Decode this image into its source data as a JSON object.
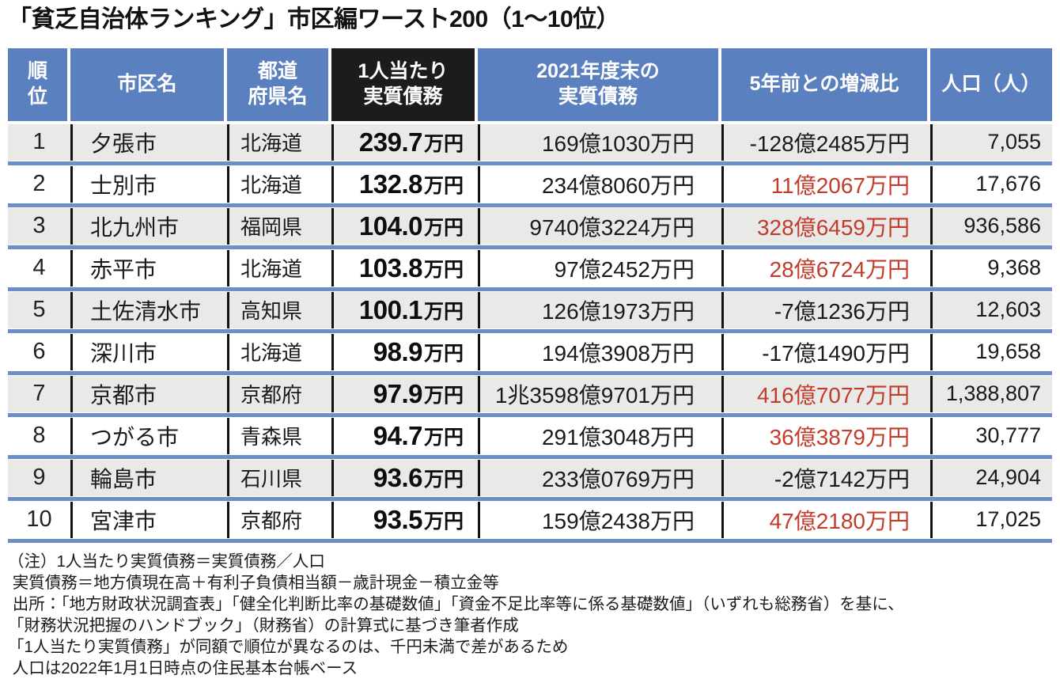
{
  "title": "「貧乏自治体ランキング」市区編ワースト200（1～10位）",
  "colors": {
    "header_blue": "#5b80bf",
    "header_black": "#1c1c1c",
    "row_gray": "#e9e9e8",
    "separator_blue": "#6c8fc7",
    "increase_red": "#c23b2b"
  },
  "chart_data": {
    "type": "table",
    "title": "「貧乏自治体ランキング」市区編ワースト200（1～10位）",
    "columns": [
      {
        "id": "rank",
        "label": "順\n位",
        "header_style": "blue"
      },
      {
        "id": "city",
        "label": "市区名",
        "header_style": "blue"
      },
      {
        "id": "pref",
        "label": "都道\n府県名",
        "header_style": "blue"
      },
      {
        "id": "per_capita",
        "label": "1人当たり\n実質債務",
        "header_style": "black"
      },
      {
        "id": "debt2021",
        "label": "2021年度末の\n実質債務",
        "header_style": "blue"
      },
      {
        "id": "change",
        "label": "5年前との増減比",
        "header_style": "blue"
      },
      {
        "id": "population",
        "label": "人口（人）",
        "header_style": "blue"
      }
    ],
    "rows": [
      {
        "rank": "1",
        "city": "夕張市",
        "pref": "北海道",
        "per_capita_value": "239.7",
        "per_capita_unit": "万円",
        "debt2021": "169億1030万円",
        "change": "-128億2485万円",
        "change_red": false,
        "population": "7,055"
      },
      {
        "rank": "2",
        "city": "士別市",
        "pref": "北海道",
        "per_capita_value": "132.8",
        "per_capita_unit": "万円",
        "debt2021": "234億8060万円",
        "change": "11億2067万円",
        "change_red": true,
        "population": "17,676"
      },
      {
        "rank": "3",
        "city": "北九州市",
        "pref": "福岡県",
        "per_capita_value": "104.0",
        "per_capita_unit": "万円",
        "debt2021": "9740億3224万円",
        "change": "328億6459万円",
        "change_red": true,
        "population": "936,586"
      },
      {
        "rank": "4",
        "city": "赤平市",
        "pref": "北海道",
        "per_capita_value": "103.8",
        "per_capita_unit": "万円",
        "debt2021": "97億2452万円",
        "change": "28億6724万円",
        "change_red": true,
        "population": "9,368"
      },
      {
        "rank": "5",
        "city": "土佐清水市",
        "pref": "高知県",
        "per_capita_value": "100.1",
        "per_capita_unit": "万円",
        "debt2021": "126億1973万円",
        "change": "-7億1236万円",
        "change_red": false,
        "population": "12,603"
      },
      {
        "rank": "6",
        "city": "深川市",
        "pref": "北海道",
        "per_capita_value": "98.9",
        "per_capita_unit": "万円",
        "debt2021": "194億3908万円",
        "change": "-17億1490万円",
        "change_red": false,
        "population": "19,658"
      },
      {
        "rank": "7",
        "city": "京都市",
        "pref": "京都府",
        "per_capita_value": "97.9",
        "per_capita_unit": "万円",
        "debt2021": "1兆3598億9701万円",
        "change": "416億7077万円",
        "change_red": true,
        "population": "1,388,807"
      },
      {
        "rank": "8",
        "city": "つがる市",
        "pref": "青森県",
        "per_capita_value": "94.7",
        "per_capita_unit": "万円",
        "debt2021": "291億3048万円",
        "change": "36億3879万円",
        "change_red": true,
        "population": "30,777"
      },
      {
        "rank": "9",
        "city": "輪島市",
        "pref": "石川県",
        "per_capita_value": "93.6",
        "per_capita_unit": "万円",
        "debt2021": "233億0769万円",
        "change": "-2億7142万円",
        "change_red": false,
        "population": "24,904"
      },
      {
        "rank": "10",
        "city": "宮津市",
        "pref": "京都府",
        "per_capita_value": "93.5",
        "per_capita_unit": "万円",
        "debt2021": "159億2438万円",
        "change": "47億2180万円",
        "change_red": true,
        "population": "17,025"
      }
    ]
  },
  "notes": [
    "（注）1人当たり実質債務＝実質債務／人口",
    " 実質債務＝地方債現在高＋有利子負債相当額－歳計現金－積立金等",
    " 出所：「地方財政状況調査表」「健全化判断比率の基礎数値」「資金不足比率等に係る基礎数値」（いずれも総務省）を基に、",
    "「財務状況把握のハンドブック」（財務省）の計算式に基づき筆者作成",
    "「1人当たり実質債務」が同額で順位が異なるのは、千円未満で差があるため",
    " 人口は2022年1月1日時点の住民基本台帳ベース"
  ]
}
